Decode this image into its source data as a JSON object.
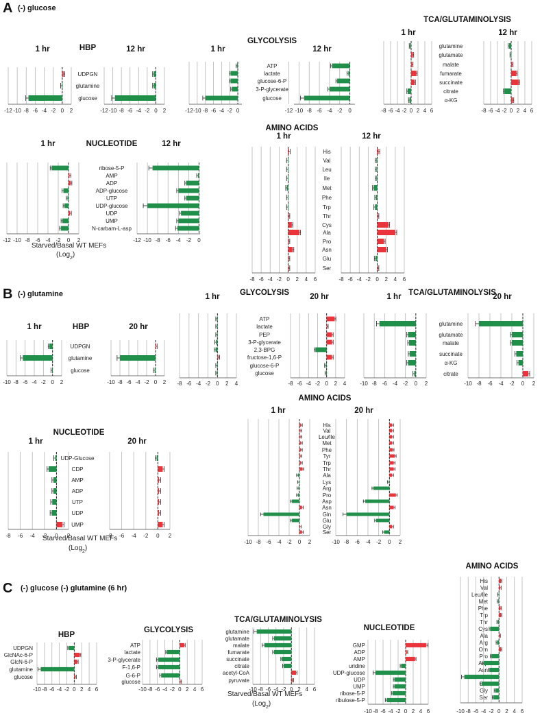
{
  "colors": {
    "negative": "#1f8f4a",
    "positive": "#e8343a",
    "grid": "#b5b5b5",
    "axis": "#444444"
  },
  "section_a": {
    "label": "A",
    "condition": "(-) glucose",
    "axis_note_1": "Starved/Basal  WT MEFs",
    "axis_note_2": "(Log",
    "axis_note_sub": "2",
    "axis_note_3": ")"
  },
  "section_b": {
    "label": "B",
    "condition": "(-) glutamine",
    "axis_note_1": "Starved/Basal  WT MEFs",
    "axis_note_2": "(Log",
    "axis_note_sub": "2",
    "axis_note_3": ")"
  },
  "section_c": {
    "label": "C",
    "condition": "(-) glucose (-) glutamine (6 hr)",
    "axis_note_1": "Starved/Basal  WT MEFs",
    "axis_note_2": "(Log",
    "axis_note_sub": "2",
    "axis_note_3": ")"
  },
  "chart_data": [
    {
      "id": "a-hbp",
      "type": "bar",
      "orientation": "horizontal",
      "title": "HBP",
      "panels": [
        "1 hr",
        "12 hr"
      ],
      "categories": [
        "UDPGN",
        "glutamine",
        "glucose"
      ],
      "series": [
        {
          "name": "1 hr",
          "values": [
            0.3,
            -0.1,
            -7.5
          ]
        },
        {
          "name": "12 hr",
          "values": [
            -0.5,
            -0.5,
            -9.5
          ]
        }
      ],
      "ticks_1": [
        "-12",
        "-10",
        "-8",
        "-6",
        "-4",
        "-2",
        "0",
        "2"
      ],
      "ticks_2": [
        "-12",
        "-10",
        "-8",
        "-6",
        "-4",
        "-2",
        "0",
        "2"
      ]
    },
    {
      "id": "a-gly",
      "type": "bar",
      "orientation": "horizontal",
      "title": "GLYCOLYSIS",
      "panels": [
        "1 hr",
        "12 hr"
      ],
      "categories": [
        "ATP",
        "lactate",
        "glucose-6-P",
        "3-P-glycerate",
        "glucose"
      ],
      "series": [
        {
          "name": "1 hr",
          "values": [
            -0.2,
            -1.8,
            -1.8,
            -1.5,
            -8
          ]
        },
        {
          "name": "12 hr",
          "values": [
            -3.5,
            -0.3,
            -2.5,
            -4,
            -9
          ]
        }
      ],
      "ticks_1": [
        "-12",
        "-10",
        "-8",
        "-6",
        "-4",
        "-2",
        "0"
      ],
      "ticks_2": [
        "-12",
        "-10",
        "-8",
        "-6",
        "-4",
        "-2",
        "0"
      ]
    },
    {
      "id": "a-tca",
      "type": "bar",
      "orientation": "horizontal",
      "title": "TCA/GLUTAMINOLYSIS",
      "panels": [
        "1 hr",
        "12 hr"
      ],
      "categories": [
        "glutamine",
        "glutamate",
        "malate",
        "fumarate",
        "succinate",
        "citrate",
        "α-KG"
      ],
      "series": [
        {
          "name": "1 hr",
          "values": [
            -0.3,
            0.5,
            0.3,
            1.5,
            1,
            -1,
            -0.5
          ]
        },
        {
          "name": "12 hr",
          "values": [
            -0.6,
            -0.1,
            0.3,
            1.5,
            2.2,
            -2,
            0.5
          ]
        }
      ],
      "ticks_1": [
        "-8",
        "-6",
        "-4",
        "-2",
        "0",
        "2",
        "4",
        "6"
      ],
      "ticks_2": [
        "-8",
        "-6",
        "-4",
        "-2",
        "0",
        "2",
        "4",
        "6"
      ]
    },
    {
      "id": "a-nuc",
      "type": "bar",
      "orientation": "horizontal",
      "title": "NUCLEOTIDE",
      "panels": [
        "1 hr",
        "12 hr"
      ],
      "categories": [
        "ribose-5-P",
        "AMP",
        "ADP",
        "ADP-glucose",
        "UTP",
        "UDP-glucose",
        "UDP",
        "UMP",
        "N-carbam-L-asp"
      ],
      "series": [
        {
          "name": "1 hr",
          "values": [
            -3.3,
            0.2,
            0.4,
            -1,
            -0.2,
            -0.8,
            0.3,
            -1.2,
            -1.5
          ]
        },
        {
          "name": "12 hr",
          "values": [
            -9,
            -0.2,
            -2.5,
            -4,
            -2.5,
            -10,
            -3.5,
            -4,
            -4.2
          ]
        }
      ],
      "ticks_1": [
        "-12",
        "-10",
        "-8",
        "-6",
        "-4",
        "-2",
        "0",
        "2"
      ],
      "ticks_2": [
        "-12",
        "-10",
        "-8",
        "-6",
        "-4",
        "-2",
        "0"
      ]
    },
    {
      "id": "a-aa",
      "type": "bar",
      "orientation": "horizontal",
      "title": "AMINO ACIDS",
      "panels": [
        "1 hr",
        "12 hr"
      ],
      "categories": [
        "His",
        "Val",
        "Leu",
        "Ile",
        "Met",
        "Phe",
        "Trp",
        "Thr",
        "Cys",
        "Ala",
        "Pro",
        "Asn",
        "Glu",
        "Ser"
      ],
      "series": [
        {
          "name": "1 hr",
          "values": [
            0.2,
            -0.1,
            -0.1,
            -0.1,
            -0.3,
            -0.1,
            -0.1,
            0.1,
            0.8,
            2.5,
            0.1,
            1,
            0.1,
            0.1
          ]
        },
        {
          "name": "12 hr",
          "values": [
            0.3,
            -0.2,
            -0.2,
            -0.2,
            -0.8,
            -0.3,
            -0.5,
            0.1,
            2.5,
            4,
            1.5,
            2,
            -0.4,
            0.1
          ]
        }
      ],
      "ticks_1": [
        "-8",
        "-6",
        "-4",
        "-2",
        "0",
        "2",
        "4",
        "6"
      ],
      "ticks_2": [
        "-8",
        "-6",
        "-4",
        "-2",
        "0",
        "2",
        "4",
        "6"
      ]
    },
    {
      "id": "b-hbp",
      "type": "bar",
      "orientation": "horizontal",
      "title": "HBP",
      "panels": [
        "1 hr",
        "20 hr"
      ],
      "categories": [
        "UDPGN",
        "glutamine",
        "glucose"
      ],
      "series": [
        {
          "name": "1 hr",
          "values": [
            -0.7,
            -6.5,
            -0.1
          ]
        },
        {
          "name": "20 hr",
          "values": [
            0.1,
            -8,
            -0.2
          ]
        }
      ],
      "ticks_1": [
        "-10",
        "-8",
        "-6",
        "-4",
        "-2",
        "0",
        "2"
      ],
      "ticks_2": [
        "-10",
        "-8",
        "-6",
        "-4",
        "-2",
        "0",
        "2"
      ]
    },
    {
      "id": "b-gly",
      "type": "bar",
      "orientation": "horizontal",
      "title": "GLYCOLYSIS",
      "panels": [
        "1 hr",
        "20 hr"
      ],
      "categories": [
        "ATP",
        "lactate",
        "PEP",
        "3-P-glycerate",
        "2,3-BPG",
        "fructose-1,6-P",
        "glucose-6-P",
        "glucose"
      ],
      "series": [
        {
          "name": "1 hr",
          "values": [
            -0.1,
            -0.1,
            -0.1,
            -0.3,
            -0.4,
            0.2,
            -0.1,
            -0.1
          ]
        },
        {
          "name": "20 hr",
          "values": [
            1.8,
            0.1,
            1.2,
            1.2,
            -2.5,
            1.2,
            -0.2,
            -0.1
          ]
        }
      ],
      "ticks_1": [
        "-8",
        "-6",
        "-4",
        "-2",
        "0",
        "2",
        "4"
      ],
      "ticks_2": [
        "-8",
        "-6",
        "-4",
        "-2",
        "0",
        "2",
        "4"
      ]
    },
    {
      "id": "b-tca",
      "type": "bar",
      "orientation": "horizontal",
      "title": "TCA/GLUTAMINOLYSIS",
      "panels": [
        "1 hr",
        "20 hr"
      ],
      "categories": [
        "glutamine",
        "glutamate",
        "malate",
        "succinate",
        "α-KG",
        "citrate"
      ],
      "series": [
        {
          "name": "1 hr",
          "values": [
            -7,
            -1.5,
            -1.3,
            -1.2,
            -1.5,
            -0.3
          ]
        },
        {
          "name": "20 hr",
          "values": [
            -8,
            -2,
            -2,
            -1.2,
            -0.8,
            1
          ]
        }
      ],
      "ticks_1": [
        "-10",
        "-8",
        "-6",
        "-4",
        "-2",
        "0",
        "2"
      ],
      "ticks_2": [
        "-10",
        "-8",
        "-6",
        "-4",
        "-2",
        "0",
        "2"
      ]
    },
    {
      "id": "b-nuc",
      "type": "bar",
      "orientation": "horizontal",
      "title": "NUCLEOTIDE",
      "panels": [
        "1 hr",
        "20 hr"
      ],
      "categories": [
        "UDP-Glucose",
        "CDP",
        "AMP",
        "ADP",
        "UTP",
        "UDP",
        "UMP"
      ],
      "series": [
        {
          "name": "1 hr",
          "values": [
            -0.2,
            -1.3,
            -0.5,
            -0.5,
            -0.7,
            -0.8,
            1
          ]
        },
        {
          "name": "20 hr",
          "values": [
            -0.2,
            0.8,
            0.2,
            0.2,
            0.2,
            0.2,
            0.8
          ]
        }
      ],
      "ticks_1": [
        "-8",
        "-6",
        "-4",
        "-2",
        "0",
        "2"
      ],
      "ticks_2": [
        "-8",
        "-6",
        "-4",
        "-2",
        "0",
        "2"
      ]
    },
    {
      "id": "b-aa",
      "type": "bar",
      "orientation": "horizontal",
      "title": "AMINO ACIDS",
      "panels": [
        "1 hr",
        "20 hr"
      ],
      "categories": [
        "His",
        "Val",
        "Leu/Ile",
        "Met",
        "Phe",
        "Tyr",
        "Trp",
        "Thr",
        "Ala",
        "Lys",
        "Arg",
        "Pro",
        "Asp",
        "Asn",
        "Gln",
        "Glu",
        "Gly",
        "Ser"
      ],
      "series": [
        {
          "name": "1 hr",
          "values": [
            0.3,
            0.2,
            0.2,
            0.3,
            0.3,
            0.2,
            0.3,
            0.6,
            -0.3,
            -0.1,
            -0.2,
            -0.3,
            -1.5,
            0.5,
            -7,
            -1.5,
            0.1,
            0.5
          ]
        },
        {
          "name": "20 hr",
          "values": [
            0.5,
            0.5,
            0.5,
            0.5,
            0.6,
            1,
            0.8,
            0.8,
            0.5,
            -0.1,
            -3,
            1.2,
            -4.5,
            0.8,
            -8,
            -2.5,
            0.5,
            -1
          ]
        }
      ],
      "ticks_1": [
        "-10",
        "-8",
        "-6",
        "-4",
        "-2",
        "0",
        "2"
      ],
      "ticks_2": [
        "-10",
        "-8",
        "-6",
        "-4",
        "-2",
        "0",
        "2"
      ]
    },
    {
      "id": "c-hbp",
      "type": "bar",
      "orientation": "horizontal",
      "title": "HBP",
      "categories": [
        "UDPGN",
        "GlcNAc-6-P",
        "GlcN-6-P",
        "glutamine",
        "glucose"
      ],
      "series": [
        {
          "name": "6 hr",
          "values": [
            -1.5,
            1.5,
            0.8,
            -9,
            0.3
          ]
        }
      ],
      "ticks_1": [
        "-10",
        "-8",
        "-6",
        "-4",
        "-2",
        "0",
        "2",
        "4",
        "6"
      ]
    },
    {
      "id": "c-gly",
      "type": "bar",
      "orientation": "horizontal",
      "title": "GLYCOLYSIS",
      "categories": [
        "ATP",
        "lactate",
        "3-P-glycerate",
        "F-1,6-P",
        "G-6-P",
        "glucose"
      ],
      "series": [
        {
          "name": "6 hr",
          "values": [
            1.2,
            -3.5,
            -5.8,
            -5.8,
            -5,
            0.2
          ]
        }
      ],
      "ticks_1": [
        "-10",
        "-8",
        "-6",
        "-4",
        "-2",
        "0",
        "2",
        "4",
        "6"
      ]
    },
    {
      "id": "c-tca",
      "type": "bar",
      "orientation": "horizontal",
      "title": "TCA/GLUTAMINOLYSIS",
      "categories": [
        "glutamine",
        "glutamate",
        "malate",
        "fumarate",
        "succinate",
        "citrate",
        "acetyl-CoA",
        "pyruvate"
      ],
      "series": [
        {
          "name": "6 hr",
          "values": [
            -9,
            -4.5,
            -7,
            -4.5,
            -2.5,
            -2,
            1.2,
            0.3
          ]
        }
      ],
      "ticks_1": [
        "-10",
        "-8",
        "-6",
        "-4",
        "-2",
        "0",
        "2",
        "4",
        "6"
      ]
    },
    {
      "id": "c-nuc",
      "type": "bar",
      "orientation": "horizontal",
      "title": "NUCLEOTIDE",
      "categories": [
        "GMP",
        "ADP",
        "AMP",
        "uridine",
        "UDP-glucose",
        "UDP",
        "UMP",
        "ribose-5-P",
        "ribulose-5-P"
      ],
      "series": [
        {
          "name": "6 hr",
          "values": [
            5.5,
            0.3,
            2.5,
            -1.2,
            -8,
            -3,
            -3,
            -3.5,
            -5
          ]
        }
      ],
      "ticks_1": [
        "-10",
        "-8",
        "-6",
        "-4",
        "-2",
        "0",
        "2",
        "4",
        "6"
      ]
    },
    {
      "id": "c-aa",
      "type": "bar",
      "orientation": "horizontal",
      "title": "AMINO ACIDS",
      "categories": [
        "His",
        "Val",
        "Leu/Ile",
        "Met",
        "Phe",
        "Trp",
        "Thr",
        "Cys",
        "Ala",
        "Arg",
        "Orn",
        "Pro",
        "Asp",
        "Asn",
        "Gln",
        "Glu",
        "Gly",
        "Ser"
      ],
      "series": [
        {
          "name": "6 hr",
          "values": [
            0.5,
            0.3,
            -0.1,
            -0.2,
            0.4,
            0.5,
            -0.3,
            -2.3,
            0.1,
            -0.5,
            0.5,
            -2,
            -4,
            -2.5,
            -9,
            -4.5,
            -1,
            -1.5
          ]
        }
      ],
      "ticks_1": [
        "-10",
        "-8",
        "-6",
        "-4",
        "-2",
        "0",
        "2",
        "4",
        "6"
      ]
    }
  ]
}
